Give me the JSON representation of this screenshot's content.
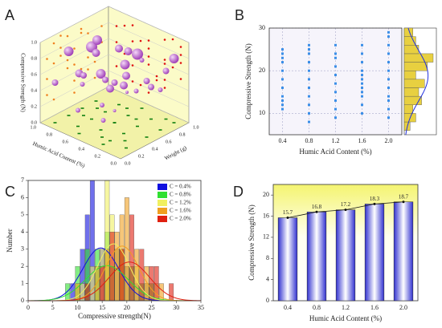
{
  "chart_data": [
    {
      "type": "scatter3d",
      "panel": "A",
      "zlabel": "Compressive Strength (N)",
      "xlabel": "Humic Acid Content (%)",
      "ylabel": "Weight (g)",
      "ticks": [
        {
          "value": 0,
          "label": "0.0"
        },
        0.2,
        0.4,
        0.6,
        0.8,
        {
          "value": 1,
          "label": "1.0"
        }
      ],
      "color": "#c060d0",
      "x": [
        0.1,
        0.1,
        0.1,
        0.1,
        0.3,
        0.3,
        0.3,
        0.3,
        0.5,
        0.5,
        0.5,
        0.5,
        0.7,
        0.7,
        0.7,
        0.7,
        0.9,
        0.9,
        0.9,
        0.9,
        0.2,
        0.4,
        0.6,
        0.8,
        0.2,
        0.4,
        0.6,
        0.8,
        0.5,
        0.3
      ],
      "y": [
        0.2,
        0.5,
        0.7,
        0.9,
        0.1,
        0.4,
        0.6,
        0.8,
        0.3,
        0.5,
        0.7,
        0.9,
        0.2,
        0.4,
        0.6,
        0.8,
        0.1,
        0.3,
        0.5,
        0.7,
        0.3,
        0.2,
        0.8,
        0.6,
        0.9,
        0.7,
        0.1,
        0.4,
        0.5,
        0.2
      ],
      "z": [
        0.9,
        0.7,
        0.5,
        0.8,
        0.3,
        0.6,
        0.9,
        0.4,
        0.7,
        0.5,
        0.8,
        0.6,
        0.2,
        0.9,
        0.4,
        0.7,
        0.5,
        0.8,
        0.3,
        0.6,
        0.95,
        0.4,
        0.2,
        0.85,
        0.6,
        0.35,
        0.75,
        0.5,
        0.15,
        0.65
      ],
      "sizes": [
        5,
        4,
        3,
        6,
        3,
        5,
        7,
        4,
        6,
        4,
        5,
        3,
        3,
        7,
        4,
        5,
        4,
        6,
        3,
        5,
        6,
        3,
        2,
        6,
        4,
        3,
        5,
        4,
        2,
        5
      ]
    },
    {
      "type": "scatter",
      "panel": "B",
      "xlabel": "Humic Acid Content (%)",
      "ylabel": "Compressive Strength (N)",
      "color": "#3a8ee8",
      "grid": true,
      "x": [
        0.4,
        0.4,
        0.4,
        0.4,
        0.4,
        0.4,
        0.4,
        0.4,
        0.4,
        0.4,
        0.4,
        0.8,
        0.8,
        0.8,
        0.8,
        0.8,
        0.8,
        0.8,
        0.8,
        0.8,
        0.8,
        0.8,
        1.2,
        1.2,
        1.2,
        1.2,
        1.2,
        1.2,
        1.2,
        1.2,
        1.2,
        1.2,
        1.6,
        1.6,
        1.6,
        1.6,
        1.6,
        1.6,
        1.6,
        1.6,
        1.6,
        1.6,
        1.6,
        1.6,
        2,
        2,
        2,
        2,
        2,
        2,
        2,
        2,
        2,
        2,
        2,
        2
      ],
      "y": [
        11,
        12,
        13,
        14,
        16,
        18,
        20,
        22,
        23,
        24,
        25,
        8,
        10,
        12,
        14,
        16,
        18,
        20,
        22,
        24,
        25,
        26,
        9,
        11,
        13,
        15,
        17,
        19,
        21,
        23,
        24,
        26,
        10,
        12,
        14,
        15,
        16,
        17,
        18,
        19,
        20,
        22,
        24,
        26,
        9,
        11,
        13,
        14,
        16,
        18,
        20,
        22,
        24,
        26,
        28,
        29
      ],
      "xlim": [
        0.2,
        2.2
      ],
      "ylim": [
        5,
        30
      ],
      "xticks": [
        0.4,
        0.8,
        1.2,
        1.6,
        {
          "value": 2,
          "label": "2.0"
        }
      ],
      "yticks": [
        10,
        20,
        30
      ],
      "marginal_histogram": {
        "color": "#e8d040",
        "bins": [
          6,
          8,
          10,
          12,
          14,
          16,
          18,
          20,
          22,
          24,
          26,
          28,
          30
        ],
        "values": [
          2,
          4,
          3,
          6,
          5,
          7,
          4,
          8,
          10,
          5,
          4,
          3
        ]
      }
    },
    {
      "type": "bar",
      "panel": "C",
      "xlabel": "Compressive strength(N)",
      "ylabel": "Number",
      "xlim": [
        0,
        35
      ],
      "ylim": [
        0,
        7
      ],
      "xticks": [
        0,
        5,
        10,
        15,
        20,
        25,
        30,
        35
      ],
      "yticks": [
        0,
        1,
        2,
        3,
        4,
        5,
        6,
        7
      ],
      "series": [
        {
          "name": "C = 0.4%",
          "color": "#1010e0",
          "x": [
            9,
            11,
            12,
            13,
            15,
            17,
            18,
            20,
            22,
            24
          ],
          "values": [
            1,
            3,
            5,
            7,
            3,
            2,
            3,
            2,
            1,
            1
          ]
        },
        {
          "name": "C = 0.8%",
          "color": "#30e030",
          "x": [
            8,
            10,
            12,
            14,
            16,
            17,
            19,
            21,
            23,
            25
          ],
          "values": [
            1,
            2,
            3,
            3,
            4,
            2,
            3,
            2,
            1,
            1
          ]
        },
        {
          "name": "C = 1.2%",
          "color": "#f0f060",
          "x": [
            11,
            13,
            15,
            16,
            17,
            18,
            20,
            22,
            24,
            26
          ],
          "values": [
            1,
            2,
            3,
            7,
            5,
            3,
            2,
            2,
            1,
            1
          ]
        },
        {
          "name": "C = 1.6%",
          "color": "#f0a020",
          "x": [
            10,
            14,
            16,
            18,
            19,
            20,
            22,
            24,
            27
          ],
          "values": [
            1,
            2,
            3,
            4,
            5,
            6,
            3,
            2,
            1
          ]
        },
        {
          "name": "C = 2.0%",
          "color": "#e02010",
          "x": [
            12,
            15,
            17,
            19,
            21,
            23,
            25,
            26,
            29
          ],
          "values": [
            1,
            2,
            4,
            3,
            5,
            3,
            2,
            2,
            1
          ]
        }
      ]
    },
    {
      "type": "bar",
      "panel": "D",
      "xlabel": "Humic Acid Content (%)",
      "ylabel": "Compressive Strength (N)",
      "categories": [
        "0.4",
        "0.8",
        "1.2",
        "1.6",
        "2.0"
      ],
      "values": [
        15.7,
        16.8,
        17.2,
        18.3,
        18.7
      ],
      "ylim": [
        0,
        22
      ],
      "yticks": [
        0,
        4,
        8,
        12,
        16,
        20
      ]
    }
  ]
}
